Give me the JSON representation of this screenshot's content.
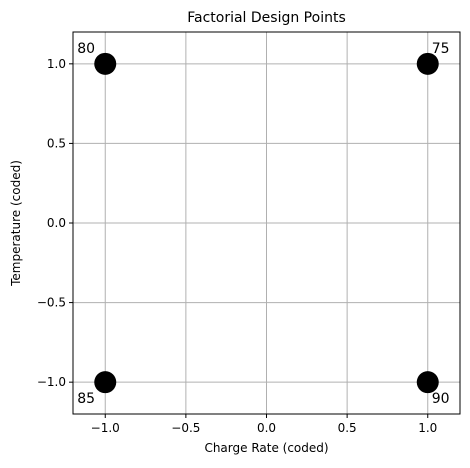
{
  "chart_data": {
    "type": "scatter",
    "title": "Factorial Design Points",
    "xlabel": "Charge Rate (coded)",
    "ylabel": "Temperature (coded)",
    "xlim": [
      -1.2,
      1.2
    ],
    "ylim": [
      -1.2,
      1.2
    ],
    "xticks": [
      -1.0,
      -0.5,
      0.0,
      0.5,
      1.0
    ],
    "yticks": [
      -1.0,
      -0.5,
      0.0,
      0.5,
      1.0
    ],
    "xtick_labels": [
      "−1.0",
      "−0.5",
      "0.0",
      "0.5",
      "1.0"
    ],
    "ytick_labels": [
      "−1.0",
      "−0.5",
      "0.0",
      "0.5",
      "1.0"
    ],
    "grid": true,
    "marker_color": "#000000",
    "grid_color": "#b0b0b0",
    "points": [
      {
        "x": -1,
        "y": 1,
        "label": "80",
        "label_pos": "upper-left"
      },
      {
        "x": 1,
        "y": 1,
        "label": "75",
        "label_pos": "upper-right"
      },
      {
        "x": -1,
        "y": -1,
        "label": "85",
        "label_pos": "lower-left"
      },
      {
        "x": 1,
        "y": -1,
        "label": "90",
        "label_pos": "lower-right"
      }
    ]
  }
}
